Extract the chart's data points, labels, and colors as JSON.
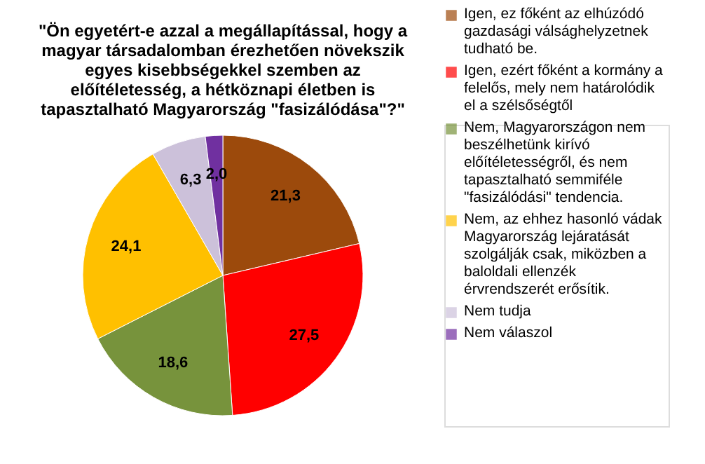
{
  "chart_data": {
    "type": "pie",
    "title": "\"Ön egyetért-e azzal a megállapítással, hogy a magyar társadalomban érezhetően növekszik egyes kisebbségekkel szemben az előítéletesség, a hétköznapi életben is tapasztalható Magyarország \"fasizálódása\"?\"",
    "categories": [
      "Igen, ez főként az elhúzódó gazdasági válsághelyzetnek tudható be.",
      "Igen, ezért főként a kormány a felelős, mely nem határolódik el a szélsőségtől",
      "Nem, Magyarországon nem beszélhetünk kirívó előítéletességről, és nem tapasztalható semmiféle \"fasizálódási\" tendencia.",
      "Nem, az ehhez hasonló vádak Magyarország lejáratását szolgálják csak, miközben a baloldali ellenzék érvrendszerét erősítik.",
      "Nem tudja",
      "Nem válaszol"
    ],
    "values": [
      21.3,
      27.5,
      18.6,
      24.1,
      6.3,
      2.0
    ],
    "value_labels": [
      "21,3",
      "27,5",
      "18,6",
      "24,1",
      "6,3",
      "2,0"
    ],
    "colors": [
      "#9c4a0c",
      "#ff0000",
      "#77933c",
      "#ffc000",
      "#ccc1da",
      "#7030a0"
    ],
    "legend": "right"
  }
}
